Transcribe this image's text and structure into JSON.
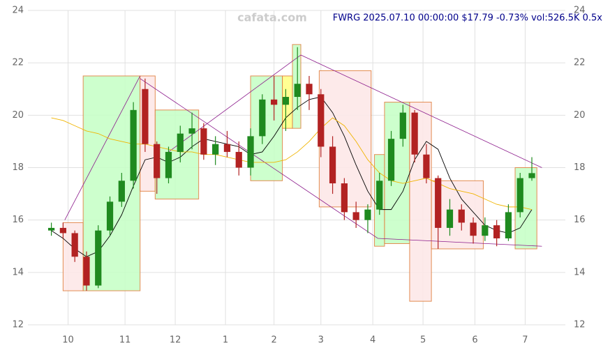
{
  "chart_data": {
    "type": "candlestick",
    "title": "FWRG 2025.07.10 00:00:00 $17.79 -0.73% vol:526.5K 0.5x",
    "watermark": "cafata.com",
    "xlim": [
      -24,
      297
    ],
    "ylim": [
      12,
      24
    ],
    "xticks": [
      {
        "value": 0,
        "label": "10"
      },
      {
        "value": 34,
        "label": "11"
      },
      {
        "value": 64,
        "label": "12"
      },
      {
        "value": 94,
        "label": "1"
      },
      {
        "value": 123,
        "label": "2"
      },
      {
        "value": 151,
        "label": "3"
      },
      {
        "value": 182,
        "label": "4"
      },
      {
        "value": 212,
        "label": "5"
      },
      {
        "value": 243,
        "label": "6"
      },
      {
        "value": 273,
        "label": "7"
      }
    ],
    "yticks": [
      12,
      14,
      16,
      18,
      20,
      22,
      24
    ],
    "grid": true,
    "up_color": "#1f8a1f",
    "down_color": "#b22222",
    "x": [
      -10,
      -3,
      4,
      11,
      18,
      25,
      32,
      39,
      46,
      53,
      60,
      67,
      74,
      81,
      88,
      95,
      102,
      109,
      116,
      123,
      130,
      137,
      144,
      151,
      158,
      165,
      172,
      179,
      186,
      193,
      200,
      207,
      214,
      221,
      228,
      235,
      242,
      249,
      256,
      263,
      270,
      277
    ],
    "open": [
      15.6,
      15.7,
      15.5,
      14.6,
      13.5,
      15.6,
      16.7,
      17.5,
      21.0,
      18.9,
      17.6,
      18.6,
      19.3,
      19.5,
      18.5,
      18.9,
      18.6,
      18.0,
      19.2,
      20.6,
      20.4,
      20.7,
      21.2,
      20.8,
      18.8,
      17.4,
      16.3,
      16.0,
      16.4,
      17.5,
      19.1,
      20.1,
      18.5,
      17.6,
      15.7,
      16.4,
      15.9,
      15.4,
      15.8,
      15.3,
      16.3,
      17.6
    ],
    "high": [
      15.9,
      15.9,
      15.6,
      14.8,
      15.8,
      16.9,
      17.8,
      20.5,
      21.4,
      19.0,
      18.8,
      19.6,
      20.1,
      19.7,
      19.2,
      19.4,
      19.0,
      19.5,
      20.8,
      21.5,
      21.0,
      22.6,
      21.5,
      21.0,
      19.2,
      17.6,
      16.7,
      16.6,
      17.8,
      19.4,
      20.4,
      20.2,
      18.9,
      17.7,
      16.8,
      16.6,
      16.1,
      16.1,
      16.0,
      16.6,
      17.8,
      18.4
    ],
    "low": [
      15.4,
      15.3,
      14.4,
      13.3,
      13.4,
      15.4,
      16.5,
      17.2,
      18.6,
      17.0,
      17.4,
      18.2,
      18.7,
      18.3,
      18.1,
      18.4,
      17.7,
      17.7,
      18.9,
      19.8,
      19.4,
      20.2,
      20.2,
      18.4,
      17.0,
      16.0,
      15.7,
      15.5,
      16.2,
      17.3,
      18.8,
      18.2,
      17.4,
      14.9,
      15.4,
      15.6,
      15.1,
      15.2,
      15.0,
      15.2,
      16.1,
      17.5
    ],
    "close": [
      15.7,
      15.5,
      14.6,
      13.5,
      15.6,
      16.7,
      17.5,
      20.2,
      18.9,
      17.6,
      18.6,
      19.3,
      19.5,
      18.5,
      18.9,
      18.6,
      18.0,
      19.2,
      20.6,
      20.4,
      20.7,
      21.2,
      20.8,
      18.8,
      17.4,
      16.3,
      16.0,
      16.4,
      17.5,
      19.1,
      20.1,
      18.5,
      17.6,
      15.7,
      16.4,
      15.9,
      15.4,
      15.8,
      15.3,
      16.3,
      17.6,
      17.79
    ],
    "series": [
      {
        "color": "#000000",
        "values": [
          15.6,
          15.3,
          14.9,
          14.6,
          14.8,
          15.4,
          16.2,
          17.3,
          18.3,
          18.4,
          18.2,
          18.4,
          18.8,
          19.1,
          19.0,
          18.9,
          18.8,
          18.5,
          18.6,
          19.2,
          19.9,
          20.3,
          20.6,
          20.7,
          20.1,
          19.2,
          18.1,
          17.1,
          16.4,
          16.4,
          17.1,
          18.3,
          19.0,
          18.7,
          17.6,
          16.8,
          16.3,
          15.8,
          15.6,
          15.5,
          15.7,
          16.4
        ]
      },
      {
        "color": "#f0b400",
        "values": [
          19.9,
          19.8,
          19.6,
          19.4,
          19.3,
          19.1,
          19.0,
          18.9,
          18.9,
          18.8,
          18.7,
          18.6,
          18.6,
          18.5,
          18.5,
          18.4,
          18.3,
          18.2,
          18.2,
          18.2,
          18.3,
          18.6,
          19.0,
          19.5,
          19.9,
          19.6,
          19.0,
          18.3,
          17.8,
          17.5,
          17.4,
          17.5,
          17.6,
          17.4,
          17.2,
          17.1,
          17.0,
          16.8,
          16.6,
          16.5,
          16.5,
          16.4
        ]
      }
    ],
    "zones": [
      {
        "x": [
          -3,
          9
        ],
        "y": [
          13.3,
          15.9
        ],
        "color": "#fde8e8"
      },
      {
        "x": [
          9,
          43
        ],
        "y": [
          13.3,
          21.5
        ],
        "color": "#c8ffc8"
      },
      {
        "x": [
          43,
          52
        ],
        "y": [
          17.1,
          21.5
        ],
        "color": "#fde8e8"
      },
      {
        "x": [
          52,
          78
        ],
        "y": [
          16.8,
          20.2
        ],
        "color": "#c8ffc8"
      },
      {
        "x": [
          109,
          128
        ],
        "y": [
          17.5,
          21.5
        ],
        "color": "#c8ffc8"
      },
      {
        "x": [
          128,
          134
        ],
        "y": [
          19.5,
          21.5
        ],
        "color": "#ffff88"
      },
      {
        "x": [
          134,
          139
        ],
        "y": [
          19.5,
          22.7
        ],
        "color": "#c8ffc8"
      },
      {
        "x": [
          150,
          181
        ],
        "y": [
          16.5,
          21.7
        ],
        "color": "#fde8e8"
      },
      {
        "x": [
          183,
          189
        ],
        "y": [
          15.0,
          18.5
        ],
        "color": "#c8ffc8"
      },
      {
        "x": [
          189,
          204
        ],
        "y": [
          15.1,
          20.5
        ],
        "color": "#c8ffc8"
      },
      {
        "x": [
          204,
          217
        ],
        "y": [
          12.9,
          20.5
        ],
        "color": "#fde8e8"
      },
      {
        "x": [
          217,
          248
        ],
        "y": [
          14.9,
          17.5
        ],
        "color": "#fde8e8"
      },
      {
        "x": [
          267,
          280
        ],
        "y": [
          14.9,
          18.0
        ],
        "color": "#c8ffc8"
      }
    ],
    "trend_lines": [
      {
        "x": [
          -2,
          43
        ],
        "y": [
          16.0,
          21.5
        ],
        "color": "#8b1a8b"
      },
      {
        "x": [
          43,
          185
        ],
        "y": [
          21.4,
          15.3
        ],
        "color": "#8b1a8b"
      },
      {
        "x": [
          185,
          283
        ],
        "y": [
          15.3,
          15.0
        ],
        "color": "#8b1a8b"
      },
      {
        "x": [
          60,
          139
        ],
        "y": [
          18.6,
          22.3
        ],
        "color": "#8b1a8b"
      },
      {
        "x": [
          139,
          283
        ],
        "y": [
          22.3,
          18.0
        ],
        "color": "#8b1a8b"
      }
    ]
  }
}
